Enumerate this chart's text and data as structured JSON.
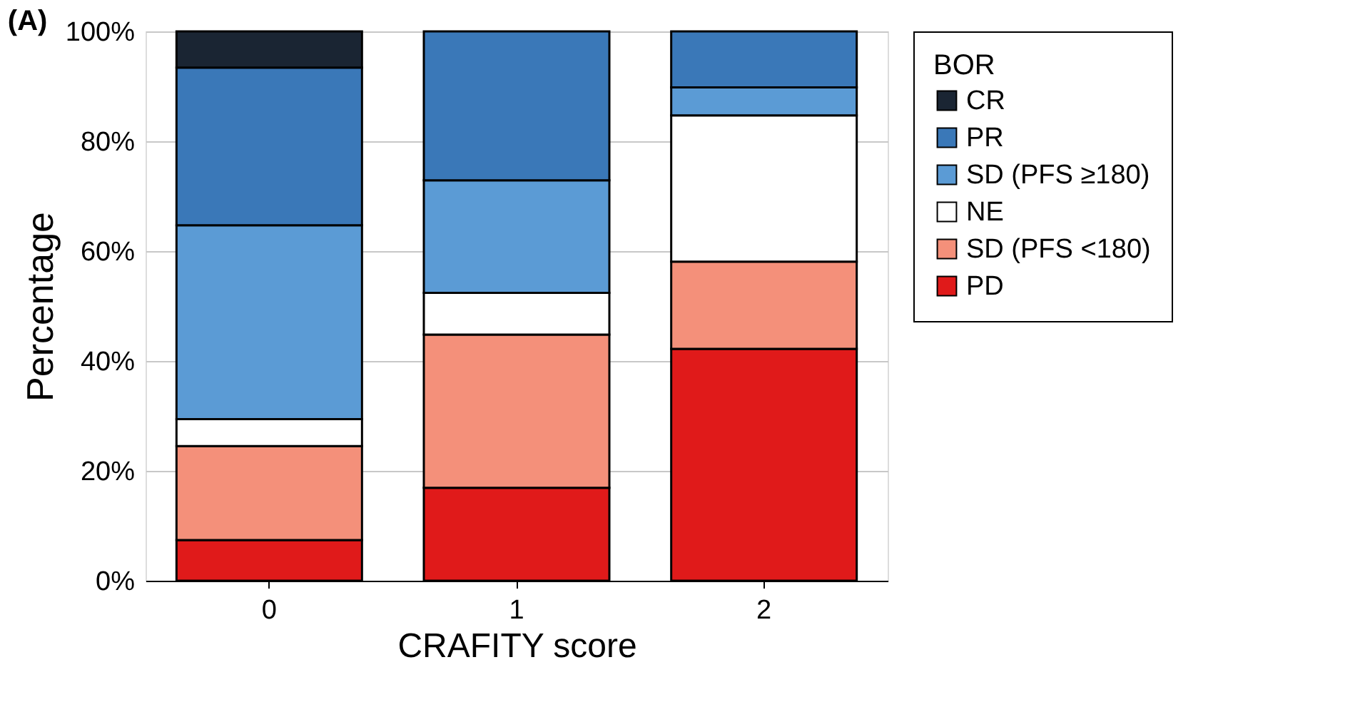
{
  "chart_data": {
    "type": "bar",
    "title": "(A)",
    "xlabel": "CRAFITY score",
    "ylabel": "Percentage",
    "legend_title": "BOR",
    "categories": [
      "0",
      "1",
      "2"
    ],
    "stacked": true,
    "series": [
      {
        "name": "PD",
        "color": "#e01a1a",
        "values": [
          7.4,
          16.9,
          42.2
        ]
      },
      {
        "name": "SD (PFS <180)",
        "color": "#f4907a",
        "values": [
          17.1,
          27.9,
          15.9
        ]
      },
      {
        "name": "NE",
        "color": "#ffffff",
        "values": [
          4.9,
          7.6,
          26.6
        ]
      },
      {
        "name": "SD (PFS ≥180)",
        "color": "#5b9bd5",
        "values": [
          35.3,
          20.5,
          5.1
        ]
      },
      {
        "name": "PR",
        "color": "#3a78b8",
        "values": [
          28.7,
          27.1,
          10.2
        ]
      },
      {
        "name": "CR",
        "color": "#1a2533",
        "values": [
          6.6,
          null,
          null
        ]
      }
    ],
    "ylim": [
      0,
      100
    ],
    "yticks": [
      {
        "value": 0,
        "label": "0%"
      },
      {
        "value": 20,
        "label": "20%"
      },
      {
        "value": 40,
        "label": "40%"
      },
      {
        "value": 60,
        "label": "60%"
      },
      {
        "value": 80,
        "label": "80%"
      },
      {
        "value": 100,
        "label": "100%"
      }
    ],
    "grid": "y",
    "legend": "right"
  }
}
